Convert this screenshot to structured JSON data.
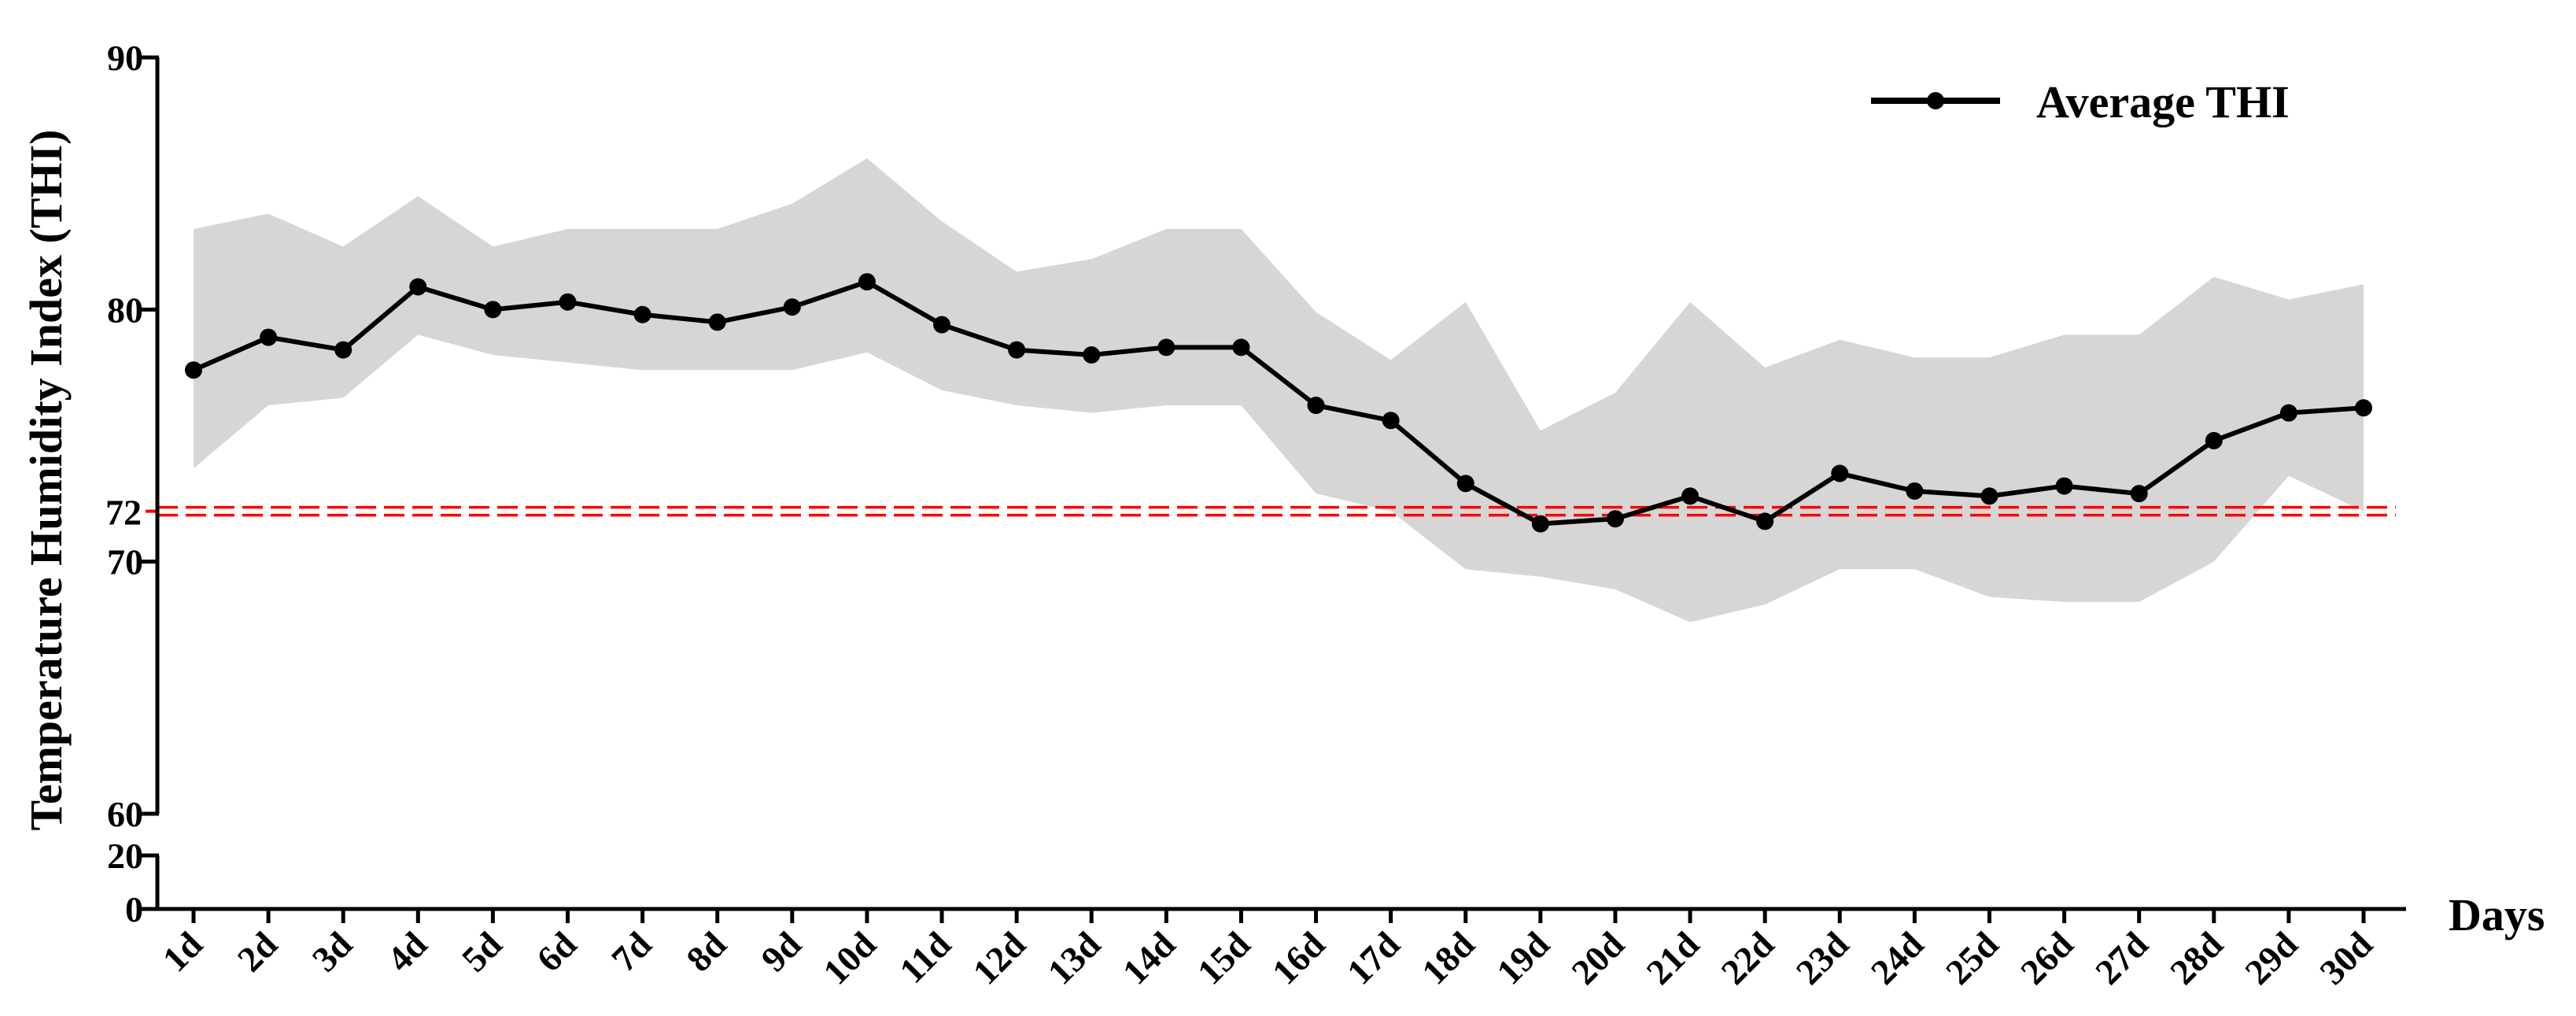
{
  "chart_data": {
    "type": "line",
    "ylabel": "Temperature Humidity Index (THI)",
    "xlabel": "Days",
    "categories": [
      "1d",
      "2d",
      "3d",
      "4d",
      "5d",
      "6d",
      "7d",
      "8d",
      "9d",
      "10d",
      "11d",
      "12d",
      "13d",
      "14d",
      "15d",
      "16d",
      "17d",
      "18d",
      "19d",
      "20d",
      "21d",
      "22d",
      "23d",
      "24d",
      "25d",
      "26d",
      "27d",
      "28d",
      "29d",
      "30d"
    ],
    "series": [
      {
        "name": "Average THI",
        "values": [
          77.6,
          78.9,
          78.4,
          80.9,
          80.0,
          80.3,
          79.8,
          79.5,
          80.1,
          81.1,
          79.4,
          78.4,
          78.2,
          78.5,
          78.5,
          76.2,
          75.6,
          73.1,
          71.5,
          71.7,
          72.6,
          71.6,
          73.5,
          72.8,
          72.6,
          73.0,
          72.7,
          74.8,
          75.9,
          76.1
        ],
        "color": "#000000"
      }
    ],
    "range_band": {
      "upper": [
        83.2,
        83.8,
        82.5,
        84.5,
        82.5,
        83.2,
        83.2,
        83.2,
        84.2,
        86.0,
        83.5,
        81.5,
        82.0,
        83.2,
        83.2,
        79.9,
        78.0,
        80.3,
        75.2,
        76.7,
        80.3,
        77.7,
        78.8,
        78.1,
        78.1,
        79.0,
        79.0,
        81.3,
        80.4,
        81.0
      ],
      "lower": [
        73.7,
        76.2,
        76.5,
        79.0,
        78.2,
        77.9,
        77.6,
        77.6,
        77.6,
        78.3,
        76.8,
        76.2,
        75.9,
        76.2,
        76.2,
        72.7,
        72.0,
        69.7,
        69.4,
        68.9,
        67.6,
        68.3,
        69.7,
        69.7,
        68.6,
        68.4,
        68.4,
        70.0,
        73.4,
        72.0
      ],
      "color": "#d6d6d6"
    },
    "reference_line": {
      "value": 72,
      "label": "72",
      "color": "#ff0000"
    },
    "yaxis_upper": {
      "range": [
        60,
        90
      ],
      "ticks": [
        "60",
        "70",
        "80",
        "90"
      ]
    },
    "yaxis_lower": {
      "range": [
        0,
        20
      ],
      "ticks": [
        "0",
        "20"
      ]
    },
    "legend": {
      "position": "top-right"
    },
    "grid": false
  }
}
